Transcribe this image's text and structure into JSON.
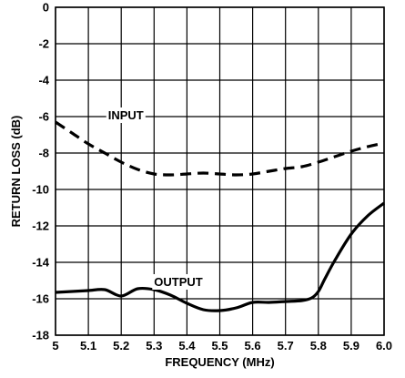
{
  "chart_data": {
    "type": "line",
    "title": "",
    "xlabel": "FREQUENCY (MHz)",
    "ylabel": "RETURN LOSS (dB)",
    "xlim": [
      5.0,
      6.0
    ],
    "ylim": [
      -18,
      0
    ],
    "x_ticks": [
      5.0,
      5.1,
      5.2,
      5.3,
      5.4,
      5.5,
      5.6,
      5.7,
      5.8,
      5.9,
      6.0
    ],
    "x_tick_labels": [
      "5",
      "5.1",
      "5.2",
      "5.3",
      "5.4",
      "5.5",
      "5.6",
      "5.7",
      "5.8",
      "5.9",
      "6.0"
    ],
    "y_ticks": [
      0,
      -2,
      -4,
      -6,
      -8,
      -10,
      -12,
      -14,
      -16,
      -18
    ],
    "y_tick_labels": [
      "0",
      "-2",
      "-4",
      "-6",
      "-8",
      "-10",
      "-12",
      "-14",
      "-16",
      "-18"
    ],
    "grid": true,
    "series": [
      {
        "name": "INPUT",
        "style": "dashed",
        "color": "#000000",
        "x": [
          5.0,
          5.05,
          5.1,
          5.15,
          5.2,
          5.25,
          5.3,
          5.35,
          5.4,
          5.45,
          5.5,
          5.55,
          5.6,
          5.65,
          5.7,
          5.75,
          5.8,
          5.85,
          5.9,
          5.95,
          6.0
        ],
        "y": [
          -6.3,
          -6.9,
          -7.5,
          -8.0,
          -8.5,
          -8.9,
          -9.15,
          -9.2,
          -9.15,
          -9.1,
          -9.15,
          -9.2,
          -9.15,
          -9.0,
          -8.85,
          -8.75,
          -8.5,
          -8.2,
          -7.9,
          -7.65,
          -7.45
        ],
        "label_x": 5.16,
        "label_y": -6.15
      },
      {
        "name": "OUTPUT",
        "style": "solid",
        "color": "#000000",
        "x": [
          5.0,
          5.05,
          5.1,
          5.15,
          5.2,
          5.25,
          5.3,
          5.35,
          5.4,
          5.45,
          5.5,
          5.55,
          5.6,
          5.65,
          5.7,
          5.75,
          5.78,
          5.8,
          5.82,
          5.85,
          5.9,
          5.95,
          6.0
        ],
        "y": [
          -15.65,
          -15.6,
          -15.55,
          -15.5,
          -15.85,
          -15.45,
          -15.5,
          -15.8,
          -16.25,
          -16.6,
          -16.65,
          -16.5,
          -16.2,
          -16.2,
          -16.15,
          -16.1,
          -15.95,
          -15.6,
          -14.9,
          -13.9,
          -12.45,
          -11.45,
          -10.75
        ],
        "label_x": 5.3,
        "label_y": -15.3
      }
    ]
  }
}
